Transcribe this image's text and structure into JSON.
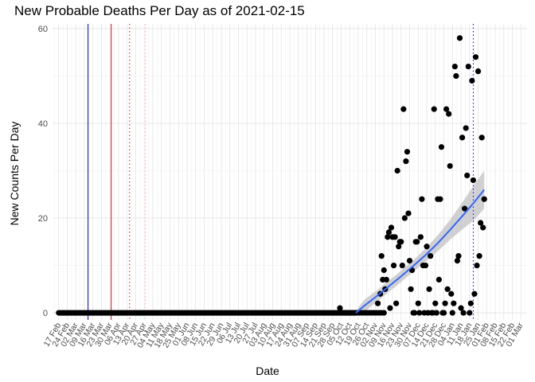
{
  "chart_data": {
    "type": "scatter",
    "title": "New Probable Deaths Per Day as of 2021-02-15",
    "xlabel": "Date",
    "ylabel": "New Counts Per Day",
    "ylim": [
      -1.5,
      61
    ],
    "yticks": [
      0,
      20,
      40,
      60
    ],
    "xrange_days": [
      0,
      379
    ],
    "x_origin_date": "2020-02-17",
    "xtick_labels": [
      "17 Feb",
      "24 Feb",
      "02 Mar",
      "09 Mar",
      "16 Mar",
      "23 Mar",
      "30 Mar",
      "06 Apr",
      "13 Apr",
      "20 Apr",
      "27 Apr",
      "04 May",
      "11 May",
      "18 May",
      "25 May",
      "01 Jun",
      "08 Jun",
      "15 Jun",
      "22 Jun",
      "29 Jun",
      "06 Jul",
      "13 Jul",
      "20 Jul",
      "27 Jul",
      "03 Aug",
      "10 Aug",
      "17 Aug",
      "24 Aug",
      "31 Aug",
      "07 Sep",
      "14 Sep",
      "21 Sep",
      "28 Sep",
      "05 Oct",
      "12 Oct",
      "19 Oct",
      "26 Oct",
      "02 Nov",
      "09 Nov",
      "16 Nov",
      "23 Nov",
      "30 Nov",
      "07 Dec",
      "14 Dec",
      "21 Dec",
      "28 Dec",
      "04 Jan",
      "11 Jan",
      "18 Jan",
      "25 Jan",
      "01 Feb",
      "08 Feb",
      "15 Feb",
      "22 Feb",
      "01 Mar"
    ],
    "grid": true,
    "zero_series": {
      "name": "New probable deaths",
      "x_start": 0,
      "x_end": 243,
      "value": 0
    },
    "points": [
      {
        "x": 230,
        "y": 1
      },
      {
        "x": 232,
        "y": 0
      },
      {
        "x": 234,
        "y": 0
      },
      {
        "x": 236,
        "y": 0
      },
      {
        "x": 238,
        "y": 0
      },
      {
        "x": 240,
        "y": 0
      },
      {
        "x": 242,
        "y": 0
      },
      {
        "x": 244,
        "y": 0
      },
      {
        "x": 246,
        "y": 0
      },
      {
        "x": 248,
        "y": 0
      },
      {
        "x": 250,
        "y": 0
      },
      {
        "x": 252,
        "y": 0
      },
      {
        "x": 254,
        "y": 0
      },
      {
        "x": 256,
        "y": 0
      },
      {
        "x": 258,
        "y": 0
      },
      {
        "x": 260,
        "y": 0
      },
      {
        "x": 262,
        "y": 0
      },
      {
        "x": 264,
        "y": 0
      },
      {
        "x": 266,
        "y": 0
      },
      {
        "x": 261,
        "y": 2
      },
      {
        "x": 263,
        "y": 4
      },
      {
        "x": 264,
        "y": 12
      },
      {
        "x": 265,
        "y": 7
      },
      {
        "x": 266,
        "y": 9
      },
      {
        "x": 267,
        "y": 5
      },
      {
        "x": 268,
        "y": 7
      },
      {
        "x": 269,
        "y": 16
      },
      {
        "x": 270,
        "y": 17
      },
      {
        "x": 271,
        "y": 1
      },
      {
        "x": 272,
        "y": 18
      },
      {
        "x": 273,
        "y": 16
      },
      {
        "x": 274,
        "y": 10
      },
      {
        "x": 275,
        "y": 16
      },
      {
        "x": 276,
        "y": 2
      },
      {
        "x": 277,
        "y": 30
      },
      {
        "x": 278,
        "y": 14
      },
      {
        "x": 279,
        "y": 15
      },
      {
        "x": 280,
        "y": 15
      },
      {
        "x": 281,
        "y": 10
      },
      {
        "x": 282,
        "y": 43
      },
      {
        "x": 283,
        "y": 20
      },
      {
        "x": 284,
        "y": 32
      },
      {
        "x": 285,
        "y": 34
      },
      {
        "x": 286,
        "y": 21
      },
      {
        "x": 287,
        "y": 11
      },
      {
        "x": 288,
        "y": 5
      },
      {
        "x": 289,
        "y": 9
      },
      {
        "x": 290,
        "y": 0
      },
      {
        "x": 291,
        "y": 0
      },
      {
        "x": 292,
        "y": 15
      },
      {
        "x": 293,
        "y": 15
      },
      {
        "x": 294,
        "y": 2
      },
      {
        "x": 295,
        "y": 0
      },
      {
        "x": 296,
        "y": 16
      },
      {
        "x": 297,
        "y": 24
      },
      {
        "x": 298,
        "y": 10
      },
      {
        "x": 299,
        "y": 0
      },
      {
        "x": 300,
        "y": 10
      },
      {
        "x": 301,
        "y": 14
      },
      {
        "x": 302,
        "y": 0
      },
      {
        "x": 303,
        "y": 5
      },
      {
        "x": 304,
        "y": 12
      },
      {
        "x": 305,
        "y": 0
      },
      {
        "x": 306,
        "y": 0
      },
      {
        "x": 307,
        "y": 43
      },
      {
        "x": 308,
        "y": 2
      },
      {
        "x": 309,
        "y": 0
      },
      {
        "x": 310,
        "y": 24
      },
      {
        "x": 311,
        "y": 7
      },
      {
        "x": 312,
        "y": 24
      },
      {
        "x": 313,
        "y": 35
      },
      {
        "x": 314,
        "y": 0
      },
      {
        "x": 315,
        "y": 0
      },
      {
        "x": 316,
        "y": 2
      },
      {
        "x": 317,
        "y": 43
      },
      {
        "x": 318,
        "y": 5
      },
      {
        "x": 319,
        "y": 42
      },
      {
        "x": 320,
        "y": 31
      },
      {
        "x": 321,
        "y": 4
      },
      {
        "x": 322,
        "y": 0
      },
      {
        "x": 323,
        "y": 2
      },
      {
        "x": 324,
        "y": 52
      },
      {
        "x": 325,
        "y": 50
      },
      {
        "x": 326,
        "y": 11
      },
      {
        "x": 327,
        "y": 12
      },
      {
        "x": 328,
        "y": 58
      },
      {
        "x": 329,
        "y": 1
      },
      {
        "x": 330,
        "y": 37
      },
      {
        "x": 331,
        "y": 0
      },
      {
        "x": 332,
        "y": 22
      },
      {
        "x": 333,
        "y": 39
      },
      {
        "x": 334,
        "y": 29
      },
      {
        "x": 335,
        "y": 52
      },
      {
        "x": 336,
        "y": 0
      },
      {
        "x": 337,
        "y": 2
      },
      {
        "x": 338,
        "y": 49
      },
      {
        "x": 339,
        "y": 28
      },
      {
        "x": 340,
        "y": 4
      },
      {
        "x": 341,
        "y": 54
      },
      {
        "x": 342,
        "y": 10
      },
      {
        "x": 343,
        "y": 51
      },
      {
        "x": 344,
        "y": 12
      },
      {
        "x": 345,
        "y": 19
      },
      {
        "x": 346,
        "y": 37
      },
      {
        "x": 347,
        "y": 18
      },
      {
        "x": 348,
        "y": 24
      }
    ],
    "smooth_line": {
      "color": "#3366FF",
      "x": [
        243,
        250,
        260,
        270,
        280,
        290,
        300,
        310,
        320,
        330,
        340,
        348
      ],
      "y": [
        0,
        1.5,
        3.5,
        5.6,
        7.7,
        9.9,
        12.2,
        14.7,
        17.5,
        20.4,
        23.4,
        26
      ],
      "ci_upper": [
        0.4,
        2.8,
        4.7,
        6.8,
        8.9,
        11.1,
        13.6,
        16.4,
        19.6,
        23.3,
        27.1,
        30
      ],
      "ci_lower": [
        -0.4,
        0.2,
        2.3,
        4.4,
        6.5,
        8.7,
        10.8,
        13.0,
        15.4,
        17.6,
        19.7,
        22
      ]
    },
    "reference_lines": [
      {
        "x": 24,
        "color": "#0000FF",
        "style": "solid"
      },
      {
        "x": 43,
        "color": "#B22222",
        "style": "solid"
      },
      {
        "x": 58,
        "color": "#B22222",
        "style": "dotted"
      },
      {
        "x": 71,
        "color": "#F4A6A6",
        "style": "dotted"
      },
      {
        "x": 339,
        "color": "#0000CC",
        "style": "dotted"
      }
    ]
  }
}
